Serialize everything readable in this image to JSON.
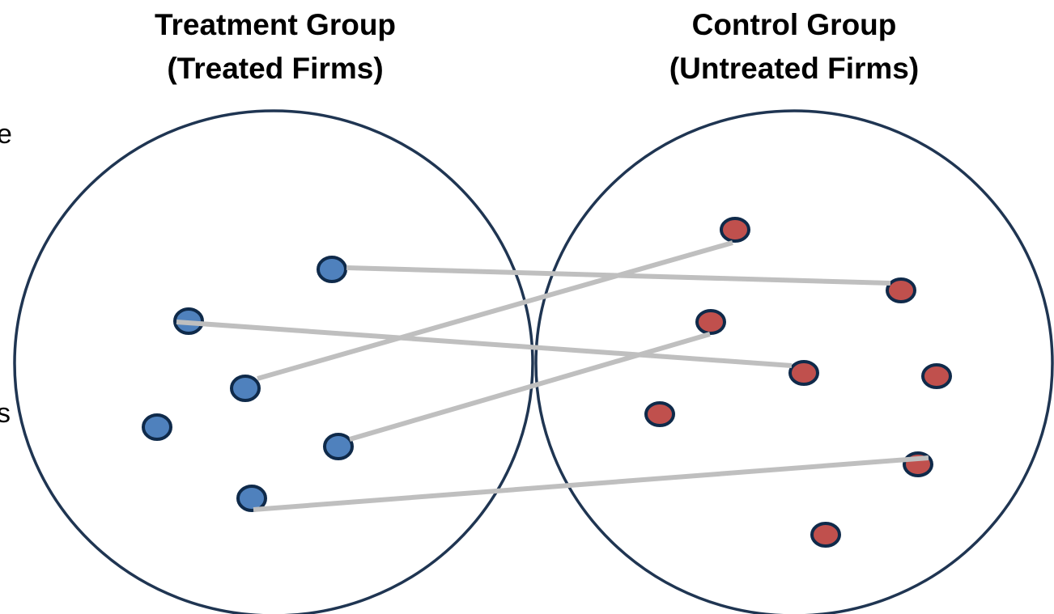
{
  "groups": [
    {
      "title_line1": "Treatment Group",
      "title_line2": "(Treated Firms)"
    },
    {
      "title_line1": "Control Group",
      "title_line2": "(Untreated Firms)"
    }
  ],
  "left_fragments": [
    "e",
    "s"
  ]
}
